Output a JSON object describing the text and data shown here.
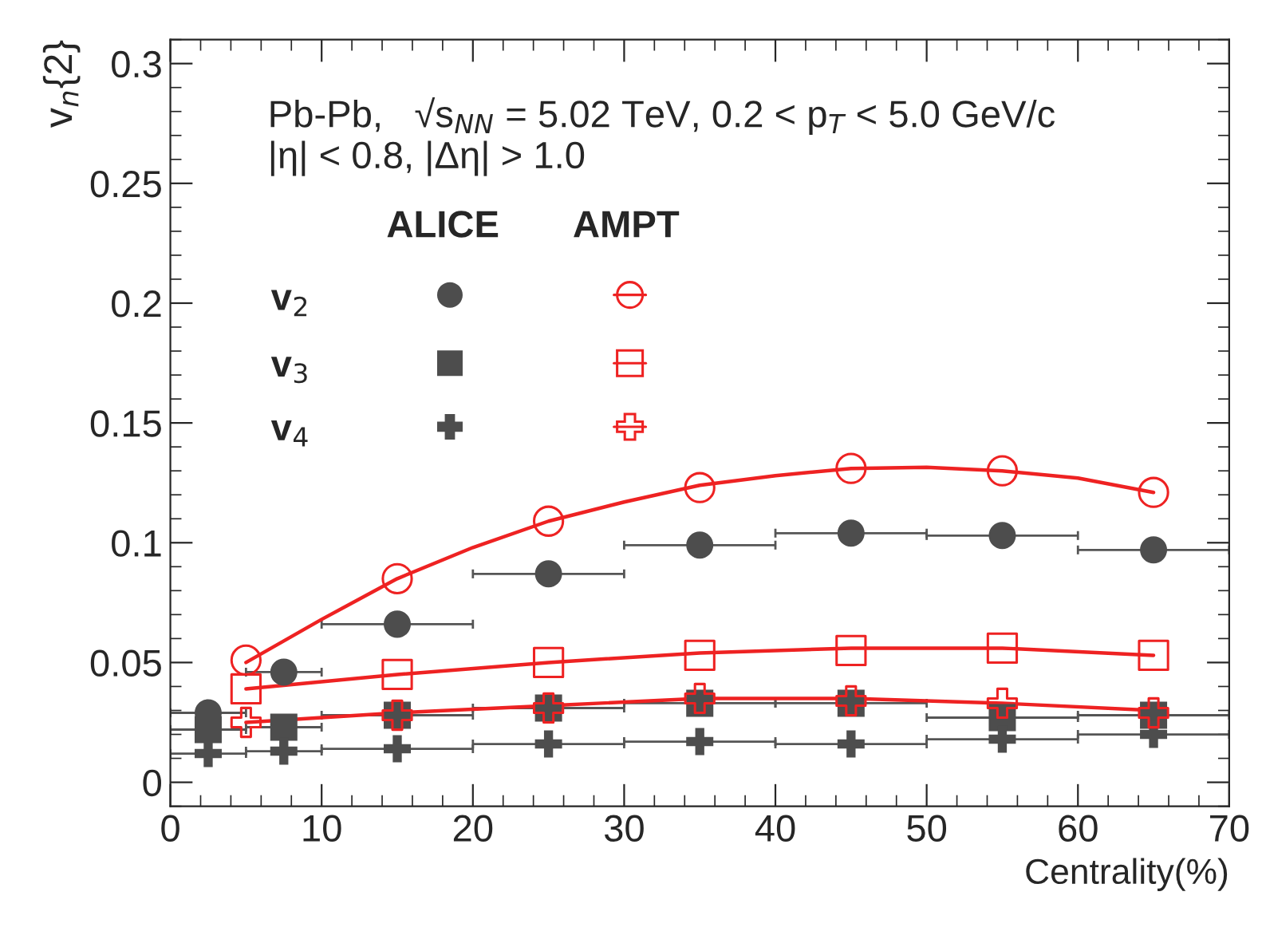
{
  "chart_data": {
    "type": "scatter",
    "xlabel": "Centrality(%)",
    "ylabel": "v$_{n}${2}",
    "xlim": [
      0,
      70
    ],
    "xticks": [
      0,
      10,
      20,
      30,
      40,
      50,
      60,
      70
    ],
    "ylim": [
      -0.01,
      0.31
    ],
    "yticks": [
      0,
      0.05,
      0.1,
      0.15,
      0.2,
      0.25,
      0.3
    ],
    "annotations": [
      "Pb-Pb,   √s$_{NN}$ = 5.02 TeV, 0.2 < p$_{T}$ < 5.0 GeV/c",
      "|η| < 0.8, |Δη| > 1.0",
      "ALICE",
      "AMPT",
      "v$_{2}$",
      "v$_{3}$",
      "v$_{4}$"
    ],
    "series": [
      {
        "color": "#4d4d4d",
        "marker": "circle",
        "x": [
          2.5,
          7.5,
          15,
          25,
          35,
          45,
          55,
          65
        ],
        "values": [
          0.029,
          0.046,
          0.066,
          0.087,
          0.099,
          0.104,
          0.103,
          0.097
        ],
        "xerrors": [
          2.5,
          2.5,
          5,
          5,
          5,
          5,
          5,
          5
        ]
      },
      {
        "color": "#4d4d4d",
        "marker": "square",
        "x": [
          2.5,
          7.5,
          15,
          25,
          35,
          45,
          55,
          65
        ],
        "values": [
          0.022,
          0.023,
          0.028,
          0.031,
          0.033,
          0.033,
          0.027,
          0.028
        ],
        "xerrors": [
          2.5,
          2.5,
          5,
          5,
          5,
          5,
          5,
          5
        ]
      },
      {
        "color": "#4d4d4d",
        "marker": "cross",
        "x": [
          2.5,
          7.5,
          15,
          25,
          35,
          45,
          55,
          65
        ],
        "values": [
          0.012,
          0.013,
          0.014,
          0.016,
          0.017,
          0.016,
          0.018,
          0.02
        ],
        "xerrors": [
          2.5,
          2.5,
          5,
          5,
          5,
          5,
          5,
          5
        ]
      },
      {
        "color": "#ee2222",
        "marker": "circle",
        "x": [
          5,
          15,
          25,
          35,
          45,
          55,
          65
        ],
        "values": [
          0.051,
          0.085,
          0.109,
          0.123,
          0.131,
          0.13,
          0.121
        ]
      },
      {
        "color": "#ee2222",
        "marker": "square",
        "x": [
          5,
          15,
          25,
          35,
          45,
          55,
          65
        ],
        "values": [
          0.039,
          0.045,
          0.05,
          0.053,
          0.055,
          0.056,
          0.053
        ]
      },
      {
        "color": "#ee2222",
        "marker": "cross",
        "x": [
          5,
          15,
          25,
          35,
          45,
          55,
          65
        ],
        "values": [
          0.025,
          0.028,
          0.031,
          0.035,
          0.034,
          0.033,
          0.029
        ]
      },
      {
        "type": "line",
        "color": "#ee2222",
        "marker": "none",
        "x": [
          5,
          10,
          15,
          20,
          25,
          30,
          35,
          40,
          45,
          50,
          55,
          60,
          65
        ],
        "values": [
          0.05,
          0.068,
          0.085,
          0.098,
          0.109,
          0.117,
          0.124,
          0.128,
          0.131,
          0.1315,
          0.13,
          0.127,
          0.121
        ]
      },
      {
        "type": "line",
        "color": "#ee2222",
        "marker": "none",
        "x": [
          5,
          15,
          25,
          35,
          45,
          55,
          65
        ],
        "values": [
          0.039,
          0.045,
          0.05,
          0.054,
          0.056,
          0.056,
          0.053
        ]
      },
      {
        "type": "line",
        "color": "#ee2222",
        "marker": "none",
        "x": [
          5,
          15,
          25,
          35,
          45,
          55,
          65
        ],
        "values": [
          0.025,
          0.029,
          0.032,
          0.035,
          0.035,
          0.033,
          0.03
        ]
      }
    ]
  }
}
